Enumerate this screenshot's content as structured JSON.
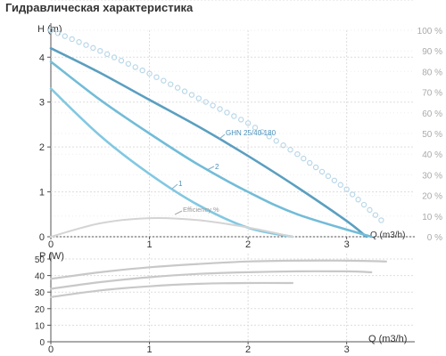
{
  "page_title": "Гидравлическая характеристика",
  "colors": {
    "curve_max": "#5b9fc0",
    "curve_mid": "#72bcd8",
    "curve_min": "#82c8e2",
    "efficiency_dots": "#b9d7e8",
    "efficiency_curve": "#d4d4d4",
    "power_curves": "#c8c8c8",
    "grid": "#dddddd",
    "axis": "#555555"
  },
  "chart_data": [
    {
      "type": "line",
      "title": "",
      "ylabel": "H (m)",
      "xlabel": "Q (m3/h)",
      "y2label": "Efficiency %",
      "xlim": [
        0,
        3.6
      ],
      "ylim": [
        0,
        4.6
      ],
      "y2lim": [
        0,
        100
      ],
      "xticks": [
        "0",
        "1",
        "2",
        "3"
      ],
      "yticks": [
        "0",
        "1",
        "2",
        "3",
        "4"
      ],
      "y2ticks": [
        "0 %",
        "10 %",
        "20 %",
        "30 %",
        "40 %",
        "50 %",
        "60 %",
        "70 %",
        "80 %",
        "90 %",
        "100 %"
      ],
      "grid": true,
      "series": [
        {
          "name": "GHN 25/40-180",
          "style": "curve_max",
          "x": [
            0,
            0.5,
            1,
            1.5,
            2,
            2.5,
            3,
            3.2
          ],
          "y": [
            4.2,
            3.65,
            3.05,
            2.45,
            1.8,
            1.1,
            0.35,
            0
          ]
        },
        {
          "name": "2",
          "style": "curve_mid",
          "x": [
            0,
            0.5,
            1,
            1.5,
            2,
            2.5,
            3.25
          ],
          "y": [
            3.9,
            3.05,
            2.3,
            1.6,
            1.0,
            0.5,
            0
          ]
        },
        {
          "name": "1",
          "style": "curve_min",
          "x": [
            0,
            0.5,
            1,
            1.5,
            2,
            2.45
          ],
          "y": [
            3.3,
            2.25,
            1.4,
            0.7,
            0.2,
            0
          ]
        },
        {
          "name": "",
          "style": "efficiency_dots",
          "axis": "y2",
          "x": [
            0,
            0.5,
            1,
            1.5,
            2,
            2.5,
            3,
            3.35
          ],
          "y": [
            100,
            90,
            79,
            67,
            55,
            40,
            23,
            8
          ]
        },
        {
          "name": "Efficiency %",
          "style": "efficiency_curve",
          "axis": "y2",
          "x": [
            0,
            0.5,
            1,
            1.5,
            2,
            2.45
          ],
          "y": [
            0,
            6.5,
            9,
            8,
            4.5,
            0
          ]
        }
      ],
      "annotations": [
        "GHN 25/40-180",
        "2",
        "1",
        "Efficiency %"
      ]
    },
    {
      "type": "line",
      "title": "",
      "ylabel": "P (W)",
      "xlabel": "Q (m3/h)",
      "xlim": [
        0,
        3.6
      ],
      "ylim": [
        0,
        50
      ],
      "xticks": [
        "0",
        "1",
        "2",
        "3"
      ],
      "yticks": [
        "0",
        "10",
        "20",
        "30",
        "40",
        "50"
      ],
      "grid": true,
      "series": [
        {
          "name": "",
          "x": [
            0,
            0.5,
            1,
            1.5,
            2,
            2.5,
            3,
            3.4
          ],
          "y": [
            38,
            42,
            45,
            47,
            48.5,
            49,
            49,
            48.5
          ]
        },
        {
          "name": "",
          "x": [
            0,
            0.5,
            1,
            1.5,
            2,
            2.5,
            3,
            3.25
          ],
          "y": [
            32,
            36,
            39,
            41,
            42,
            42.5,
            42.5,
            42
          ]
        },
        {
          "name": "",
          "x": [
            0,
            0.5,
            1,
            1.5,
            2,
            2.45
          ],
          "y": [
            27,
            31,
            33.5,
            35,
            35.5,
            35.5
          ]
        }
      ]
    }
  ]
}
